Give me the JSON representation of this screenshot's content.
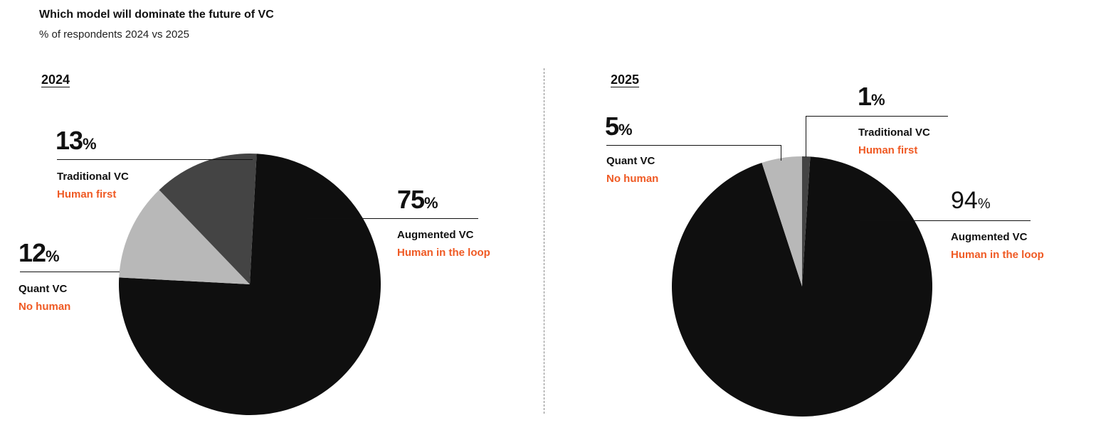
{
  "title": "Which model will dominate the future of VC",
  "subtitle": "% of respondents 2024 vs 2025",
  "colors": {
    "augmented": "#0f0f0f",
    "traditional": "#444444",
    "quant": "#b8b8b8",
    "accent": "#ef5a24"
  },
  "chart_data": [
    {
      "type": "pie",
      "title": "2024",
      "slices": [
        {
          "label": "Augmented VC",
          "sublabel": "Human in the loop",
          "value": 75,
          "pct_text": "75"
        },
        {
          "label": "Quant VC",
          "sublabel": "No human",
          "value": 12,
          "pct_text": "12"
        },
        {
          "label": "Traditional VC",
          "sublabel": "Human first",
          "value": 13,
          "pct_text": "13"
        }
      ]
    },
    {
      "type": "pie",
      "title": "2025",
      "slices": [
        {
          "label": "Augmented VC",
          "sublabel": "Human in the loop",
          "value": 94,
          "pct_text": "94"
        },
        {
          "label": "Quant VC",
          "sublabel": "No human",
          "value": 5,
          "pct_text": "5"
        },
        {
          "label": "Traditional VC",
          "sublabel": "Human first",
          "value": 1,
          "pct_text": "1"
        }
      ]
    }
  ],
  "percent_sign": "%"
}
